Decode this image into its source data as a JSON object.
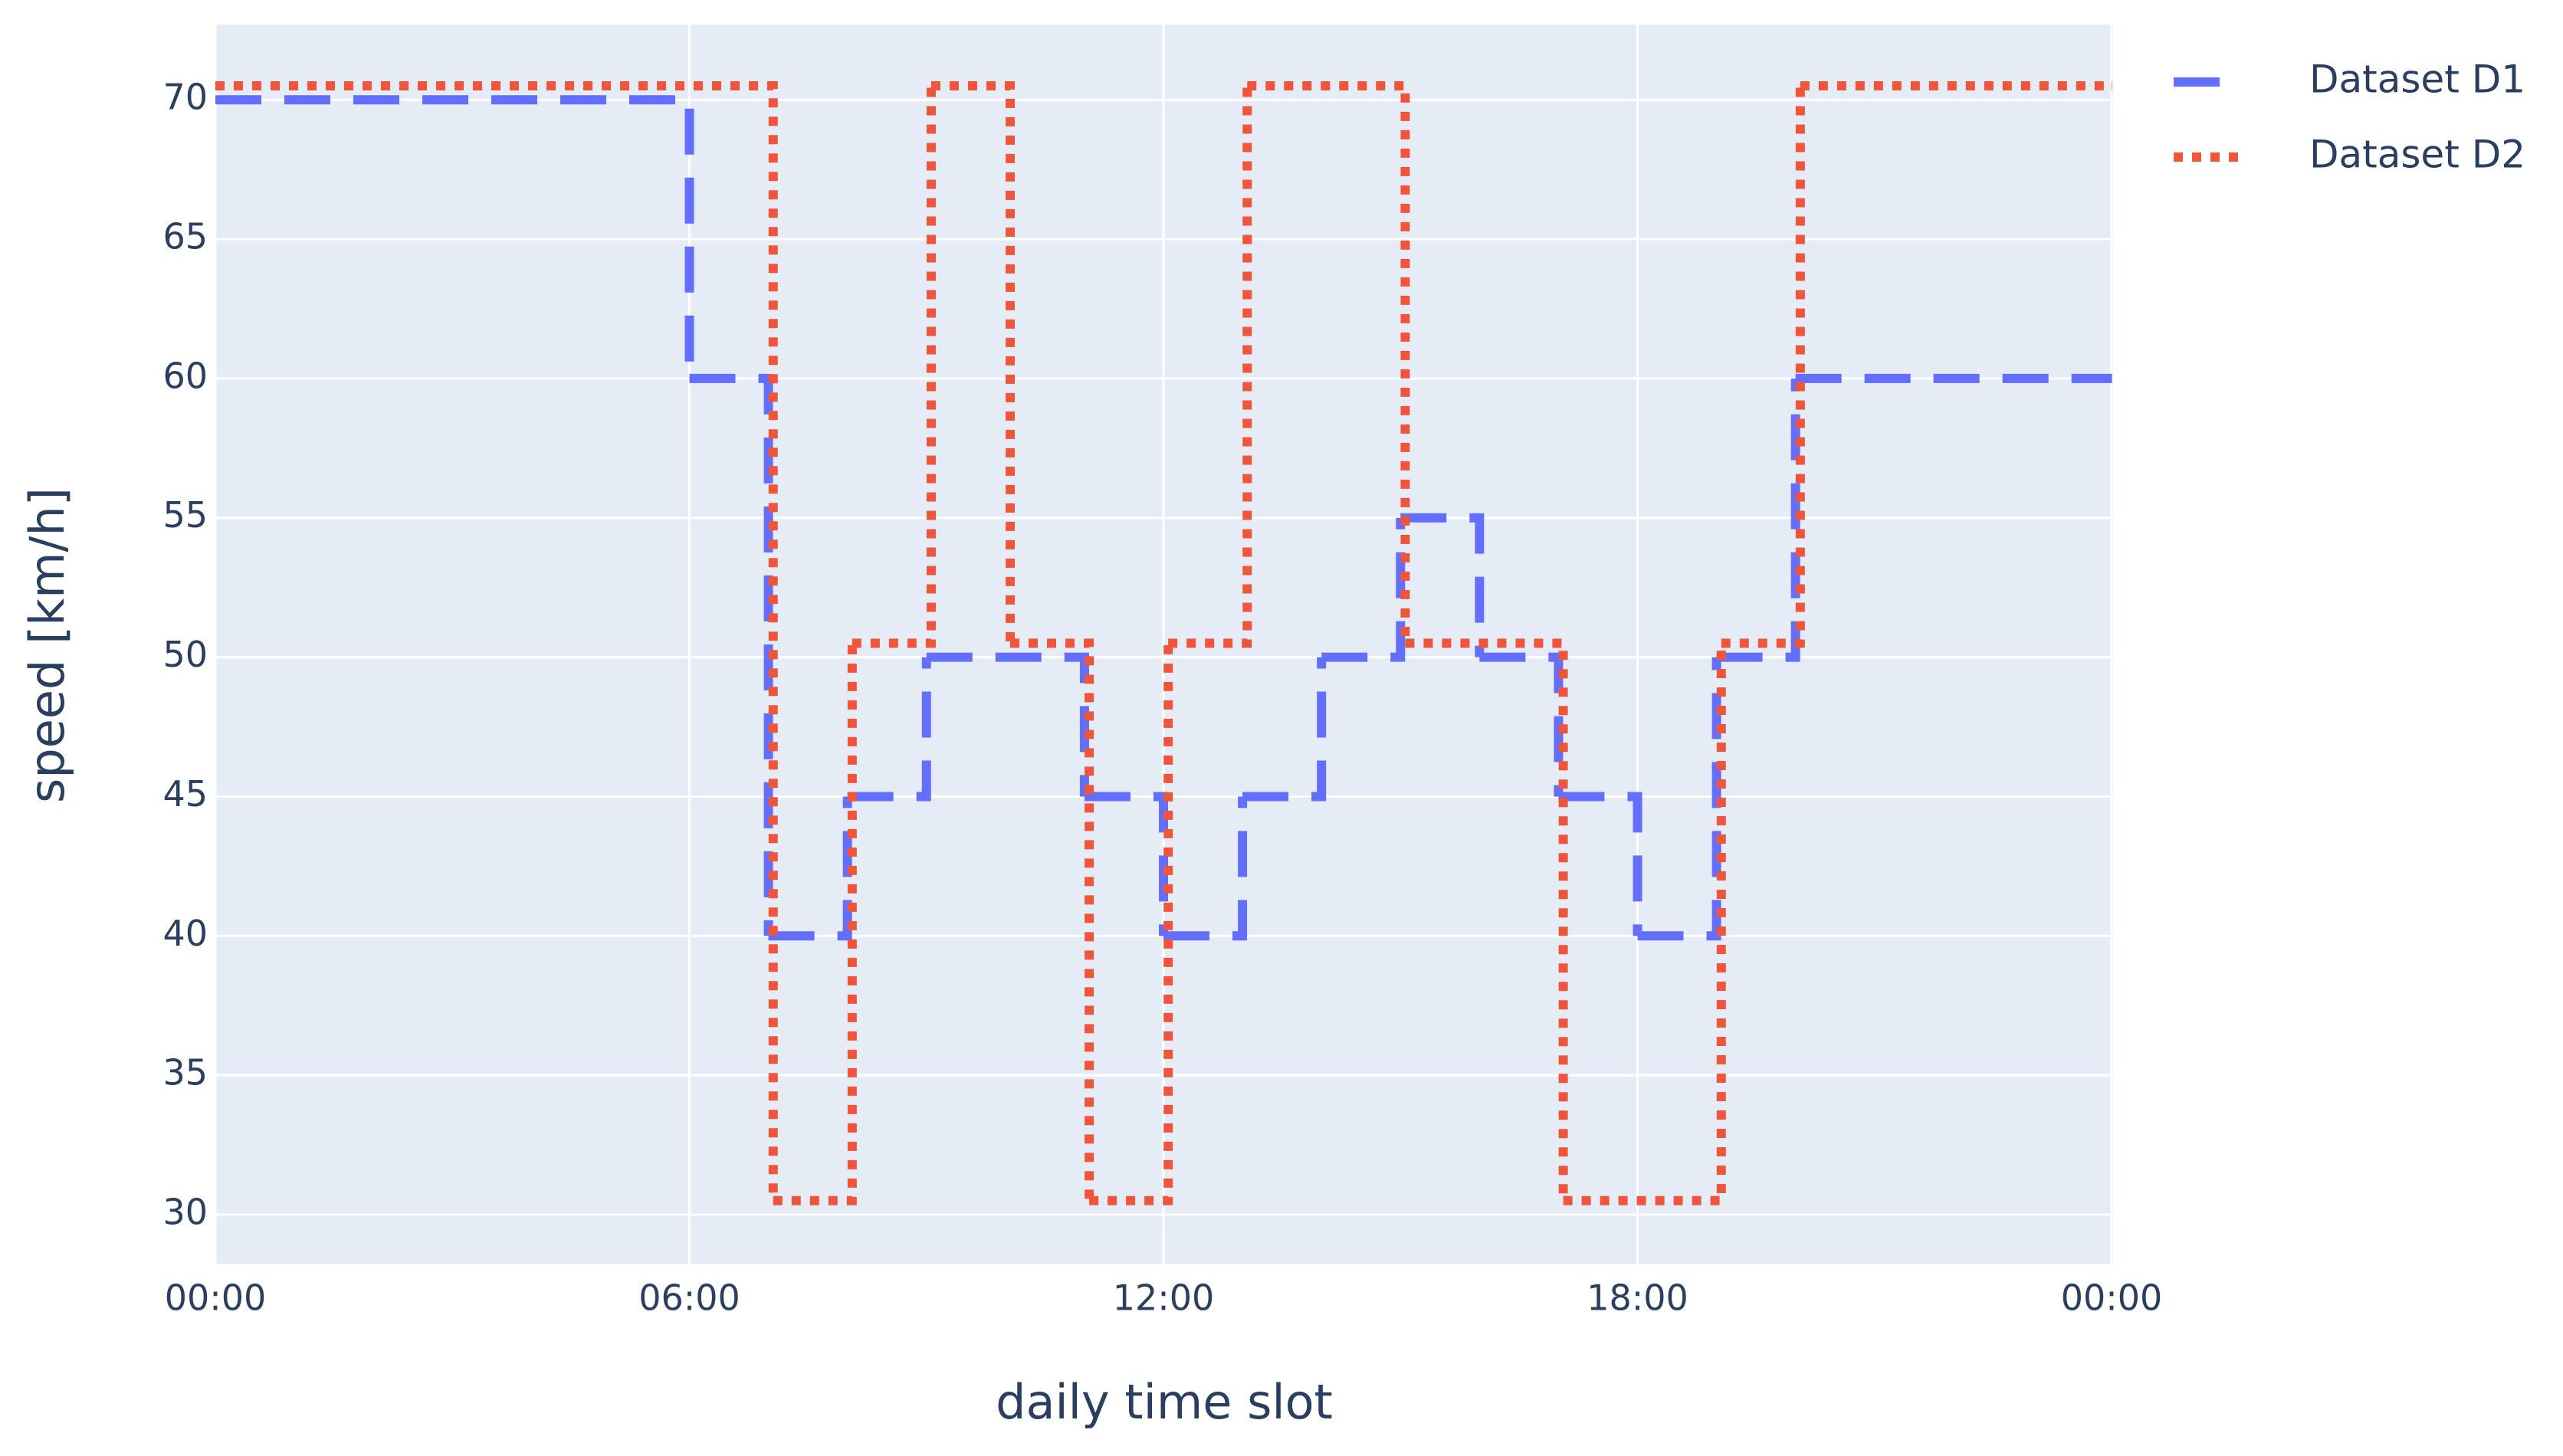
{
  "chart_data": {
    "type": "line",
    "shape": "hv",
    "xlabel": "daily time slot",
    "ylabel": "speed [km/h]",
    "xlim": [
      0,
      24
    ],
    "ylim": [
      28.24,
      72.7
    ],
    "xticks": [
      {
        "value": 0,
        "label": "00:00"
      },
      {
        "value": 6,
        "label": "06:00"
      },
      {
        "value": 12,
        "label": "12:00"
      },
      {
        "value": 18,
        "label": "18:00"
      },
      {
        "value": 24,
        "label": "00:00"
      }
    ],
    "yticks": [
      30,
      35,
      40,
      45,
      50,
      55,
      60,
      65,
      70
    ],
    "grid": true,
    "legend": "top-right",
    "series": [
      {
        "name": "Dataset D1",
        "color": "#636efa",
        "dash": "dash",
        "x": [
          0,
          6,
          7,
          8,
          9,
          11,
          12,
          13,
          14,
          15,
          16,
          17,
          18,
          19,
          20,
          24
        ],
        "values": [
          70,
          60,
          40,
          45,
          50,
          45,
          40,
          45,
          50,
          55,
          50,
          45,
          40,
          50,
          60,
          60
        ]
      },
      {
        "name": "Dataset D2",
        "color": "#ef553b",
        "dash": "dot",
        "x": [
          0,
          7.06,
          8.06,
          9.06,
          10.06,
          11.06,
          12.06,
          13.06,
          15.06,
          17.06,
          19.06,
          20.06,
          24
        ],
        "values": [
          70.5,
          30.5,
          50.5,
          70.5,
          50.5,
          30.5,
          50.5,
          70.5,
          50.5,
          30.5,
          50.5,
          70.5,
          70.5
        ]
      }
    ]
  }
}
